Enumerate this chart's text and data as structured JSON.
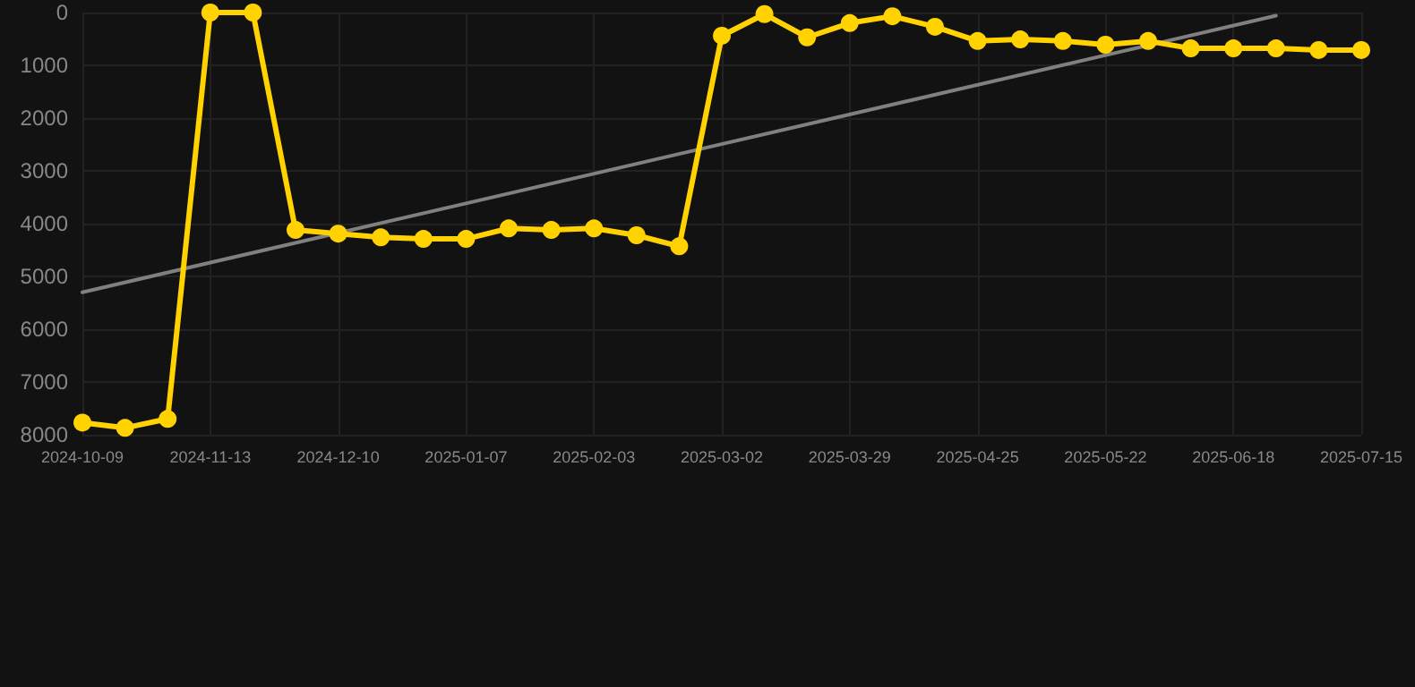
{
  "chart_data": {
    "type": "line",
    "categories": [
      "2024-10-09",
      null,
      null,
      "2024-11-13",
      null,
      null,
      "2024-12-10",
      null,
      null,
      "2025-01-07",
      null,
      null,
      "2025-02-03",
      null,
      null,
      "2025-03-02",
      null,
      null,
      "2025-03-29",
      null,
      null,
      "2025-04-25",
      null,
      null,
      "2025-05-22",
      null,
      null,
      "2025-06-18",
      null,
      null,
      "2025-07-15"
    ],
    "series": [
      {
        "color": "#ffd200",
        "values": [
          7770,
          7870,
          7700,
          0,
          0,
          4120,
          4190,
          4260,
          4290,
          4290,
          4090,
          4120,
          4090,
          4220,
          4430,
          440,
          30,
          470,
          200,
          70,
          270,
          540,
          510,
          540,
          610,
          540,
          680,
          680,
          680,
          710,
          710
        ]
      },
      {
        "type": "line",
        "color": "#808080",
        "marker": "none",
        "values": [
          5300,
          null,
          null,
          null,
          null,
          null,
          null,
          null,
          null,
          null,
          null,
          null,
          null,
          null,
          null,
          null,
          null,
          null,
          null,
          null,
          null,
          null,
          null,
          null,
          null,
          null,
          null,
          null,
          60,
          null,
          null
        ]
      }
    ],
    "ylim": [
      8000,
      0
    ],
    "yticks": [
      0,
      1000,
      2000,
      3000,
      4000,
      5000,
      6000,
      7000,
      8000
    ],
    "grid": true,
    "marker": "circle",
    "line_style": "solid"
  }
}
